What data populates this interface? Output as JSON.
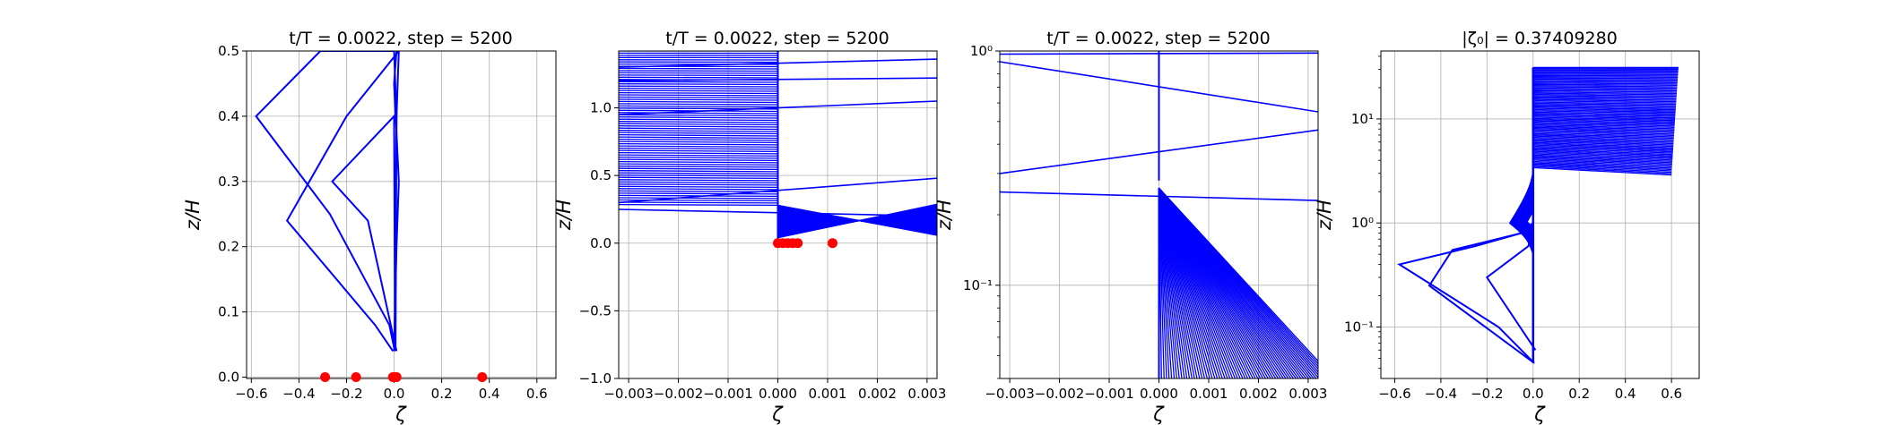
{
  "figure": {
    "background": "#ffffff",
    "line_color": "#0000ff",
    "marker_color": "#ff0000",
    "grid_color": "#b0b0b0"
  },
  "chart_data": [
    {
      "type": "line",
      "title": "t/T = 0.0022, step = 5200",
      "xlabel": "ζ",
      "ylabel": "z/H",
      "xlim": [
        -0.62,
        0.68
      ],
      "ylim": [
        -0.002,
        0.5
      ],
      "yscale": "linear",
      "grid": true,
      "xticks": [
        "−0.6",
        "−0.4",
        "−0.2",
        "0.0",
        "0.2",
        "0.4",
        "0.6"
      ],
      "xtick_values": [
        -0.6,
        -0.4,
        -0.2,
        0.0,
        0.2,
        0.4,
        0.6
      ],
      "yticks": [
        "0.0",
        "0.1",
        "0.2",
        "0.3",
        "0.4",
        "0.5"
      ],
      "ytick_values": [
        0.0,
        0.1,
        0.2,
        0.3,
        0.4,
        0.5
      ],
      "series": [
        {
          "x": [
            0.003,
            -0.02,
            -0.27,
            -0.58,
            -0.31,
            0.0,
            0.01,
            0.005,
            0.002
          ],
          "y": [
            0.04,
            0.08,
            0.25,
            0.4,
            0.5,
            0.5,
            0.4,
            0.25,
            0.04
          ]
        },
        {
          "x": [
            -0.005,
            -0.08,
            -0.45,
            -0.2,
            0.02,
            0.01,
            0.006
          ],
          "y": [
            0.04,
            0.08,
            0.24,
            0.4,
            0.5,
            0.4,
            0.04
          ]
        },
        {
          "x": [
            0.01,
            -0.11,
            -0.26,
            0.0,
            0.004
          ],
          "y": [
            0.04,
            0.24,
            0.3,
            0.4,
            0.04
          ]
        },
        {
          "x": [
            0.0,
            0.01,
            0.02,
            0.0,
            0.01
          ],
          "y": [
            0.04,
            0.2,
            0.3,
            0.45,
            0.5
          ]
        }
      ],
      "markers": {
        "x": [
          -0.29,
          -0.16,
          -0.005,
          0.0,
          0.01,
          0.37
        ],
        "y": [
          0.0,
          0.0,
          0.0,
          0.0,
          0.0,
          0.0
        ]
      }
    },
    {
      "type": "line",
      "title": "t/T = 0.0022, step = 5200",
      "xlabel": "ζ",
      "ylabel": "z/H",
      "xlim": [
        -0.0032,
        0.0032
      ],
      "ylim": [
        -1.0,
        1.42
      ],
      "yscale": "linear",
      "grid": true,
      "xticks": [
        "−0.003",
        "−0.002",
        "−0.001",
        "0.000",
        "0.001",
        "0.002",
        "0.003"
      ],
      "xtick_values": [
        -0.003,
        -0.002,
        -0.001,
        0.0,
        0.001,
        0.002,
        0.003
      ],
      "yticks": [
        "−1.0",
        "−0.5",
        "0.0",
        "0.5",
        "1.0"
      ],
      "ytick_values": [
        -1.0,
        -0.5,
        0.0,
        0.5,
        1.0
      ],
      "upper_block": {
        "x_min": -0.0032,
        "x_max": 0.0,
        "y_min": 0.28,
        "y_max": 1.42,
        "x_offset_max": 0.0012
      },
      "lower_block": {
        "x_min": 0.0,
        "x_max": 0.0032,
        "y_min": 0.04,
        "y_max": 0.55
      },
      "long_lines": {
        "y_left": [
          0.25,
          0.3,
          0.95,
          1.2,
          1.3
        ],
        "y_right": [
          0.2,
          0.48,
          1.05,
          1.22,
          1.36
        ]
      },
      "markers": {
        "x": [
          0.0,
          0.0001,
          0.0002,
          0.0003,
          0.0004,
          0.0011
        ],
        "y": [
          0.0,
          0.0,
          0.0,
          0.0,
          0.0,
          0.0
        ]
      }
    },
    {
      "type": "line",
      "title": "t/T = 0.0022, step = 5200",
      "xlabel": "ζ",
      "ylabel": "z/H",
      "xlim": [
        -0.0032,
        0.0032
      ],
      "ylim": [
        0.04,
        1.0
      ],
      "yscale": "log",
      "grid": true,
      "xticks": [
        "−0.003",
        "−0.002",
        "−0.001",
        "0.000",
        "0.001",
        "0.002",
        "0.003"
      ],
      "xtick_values": [
        -0.003,
        -0.002,
        -0.001,
        0.0,
        0.001,
        0.002,
        0.003
      ],
      "yticks": [
        "10⁻¹",
        "10⁰"
      ],
      "ytick_values": [
        0.1,
        1.0
      ],
      "upper_block": {
        "x_min": -0.0032,
        "x_max": 0.0,
        "y_min": 0.28,
        "y_max": 1.0
      },
      "lower_block": {
        "x_min": 0.0,
        "x_max": 0.0032,
        "y_min": 0.04,
        "y_max": 0.26
      },
      "long_lines": {
        "y_left": [
          0.25,
          0.3,
          0.9,
          0.97
        ],
        "y_right": [
          0.23,
          0.46,
          0.55,
          0.98
        ]
      }
    },
    {
      "type": "line",
      "title": "|ζ₀| = 0.37409280",
      "xlabel": "ζ",
      "ylabel": "z/H",
      "xlim": [
        -0.66,
        0.72
      ],
      "ylim": [
        0.032,
        45
      ],
      "yscale": "log",
      "grid": true,
      "xticks": [
        "−0.6",
        "−0.4",
        "−0.2",
        "0.0",
        "0.2",
        "0.4",
        "0.6"
      ],
      "xtick_values": [
        -0.6,
        -0.4,
        -0.2,
        0.0,
        0.2,
        0.4,
        0.6
      ],
      "yticks": [
        "10⁻¹",
        "10⁰",
        "10¹"
      ],
      "ytick_values": [
        0.1,
        1.0,
        10.0
      ],
      "series": [
        {
          "x": [
            0.005,
            -0.15,
            -0.58,
            -0.25,
            -0.05,
            0.0
          ],
          "y": [
            0.045,
            0.1,
            0.4,
            0.6,
            0.8,
            1.0
          ]
        },
        {
          "x": [
            0.005,
            -0.45,
            -0.35,
            -0.05,
            0.0
          ],
          "y": [
            0.045,
            0.25,
            0.55,
            0.8,
            1.0
          ]
        },
        {
          "x": [
            0.01,
            -0.2,
            -0.02,
            0.0
          ],
          "y": [
            0.06,
            0.3,
            0.6,
            1.0
          ]
        }
      ],
      "fan": {
        "x_end_top": 0.63,
        "x_end_bottom": 0.6,
        "y_top": 31,
        "y_bottom": 3.4,
        "x_loop_min": -0.1,
        "y_loop": 1.0
      }
    }
  ]
}
